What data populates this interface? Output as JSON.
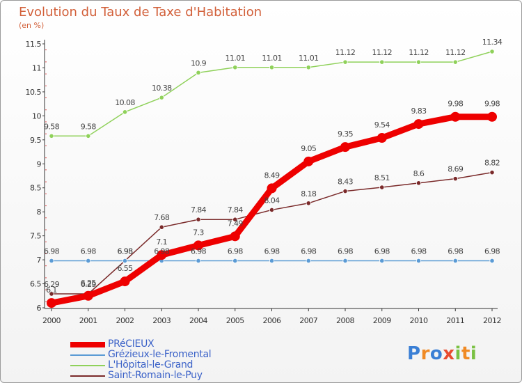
{
  "chart_data": {
    "type": "line",
    "title": "Evolution du Taux de Taxe d'Habitation",
    "ylabel": "(en %)",
    "x": [
      "2000",
      "2001",
      "2002",
      "2003",
      "2004",
      "2005",
      "2006",
      "2007",
      "2008",
      "2009",
      "2010",
      "2011",
      "2012"
    ],
    "ylim": [
      6,
      11.5
    ],
    "yticks": [
      "6",
      "6.5",
      "7",
      "7.5",
      "8",
      "8.5",
      "9",
      "9.5",
      "10",
      "10.5",
      "11",
      "11.5"
    ],
    "grid": false,
    "legend_position": "bottom-left",
    "series": [
      {
        "name": "PRéCIEUX",
        "color": "#ee0000",
        "values": [
          6.1,
          6.25,
          6.55,
          7.1,
          7.3,
          7.49,
          8.49,
          9.05,
          9.35,
          9.54,
          9.83,
          9.98,
          9.98
        ],
        "labels": [
          "6.1",
          "6.25",
          "6.55",
          "7.1",
          "7.3",
          "7.49",
          "8.49",
          "9.05",
          "9.35",
          "9.54",
          "9.83",
          "9.98",
          "9.98"
        ]
      },
      {
        "name": "Grézieux-le-Fromental",
        "color": "#5b9bd5",
        "values": [
          6.98,
          6.98,
          6.98,
          6.98,
          6.98,
          6.98,
          6.98,
          6.98,
          6.98,
          6.98,
          6.98,
          6.98,
          6.98
        ],
        "labels": [
          "6.98",
          "6.98",
          "6.98",
          "6.98",
          "6.98",
          "6.98",
          "6.98",
          "6.98",
          "6.98",
          "6.98",
          "6.98",
          "6.98",
          "6.98"
        ]
      },
      {
        "name": "L'Hôpital-le-Grand",
        "color": "#8fd15a",
        "values": [
          9.58,
          9.58,
          10.08,
          10.38,
          10.9,
          11.01,
          11.01,
          11.01,
          11.12,
          11.12,
          11.12,
          11.12,
          11.34
        ],
        "labels": [
          "9.58",
          "9.58",
          "10.08",
          "10.38",
          "10.9",
          "11.01",
          "11.01",
          "11.01",
          "11.12",
          "11.12",
          "11.12",
          "11.12",
          "11.34"
        ]
      },
      {
        "name": "Saint-Romain-le-Puy",
        "color": "#7a2a2a",
        "values": [
          6.29,
          6.29,
          6.98,
          7.68,
          7.84,
          7.84,
          8.04,
          8.18,
          8.43,
          8.51,
          8.6,
          8.69,
          8.82
        ],
        "labels": [
          "6.29",
          "6.29",
          "6.98",
          "7.68",
          "7.84",
          "7.84",
          "8.04",
          "8.18",
          "8.43",
          "8.51",
          "8.6",
          "8.69",
          "8.82"
        ]
      }
    ]
  },
  "logo": {
    "letters": [
      "P",
      "r",
      "o",
      "x",
      "i",
      "t",
      "i"
    ]
  }
}
